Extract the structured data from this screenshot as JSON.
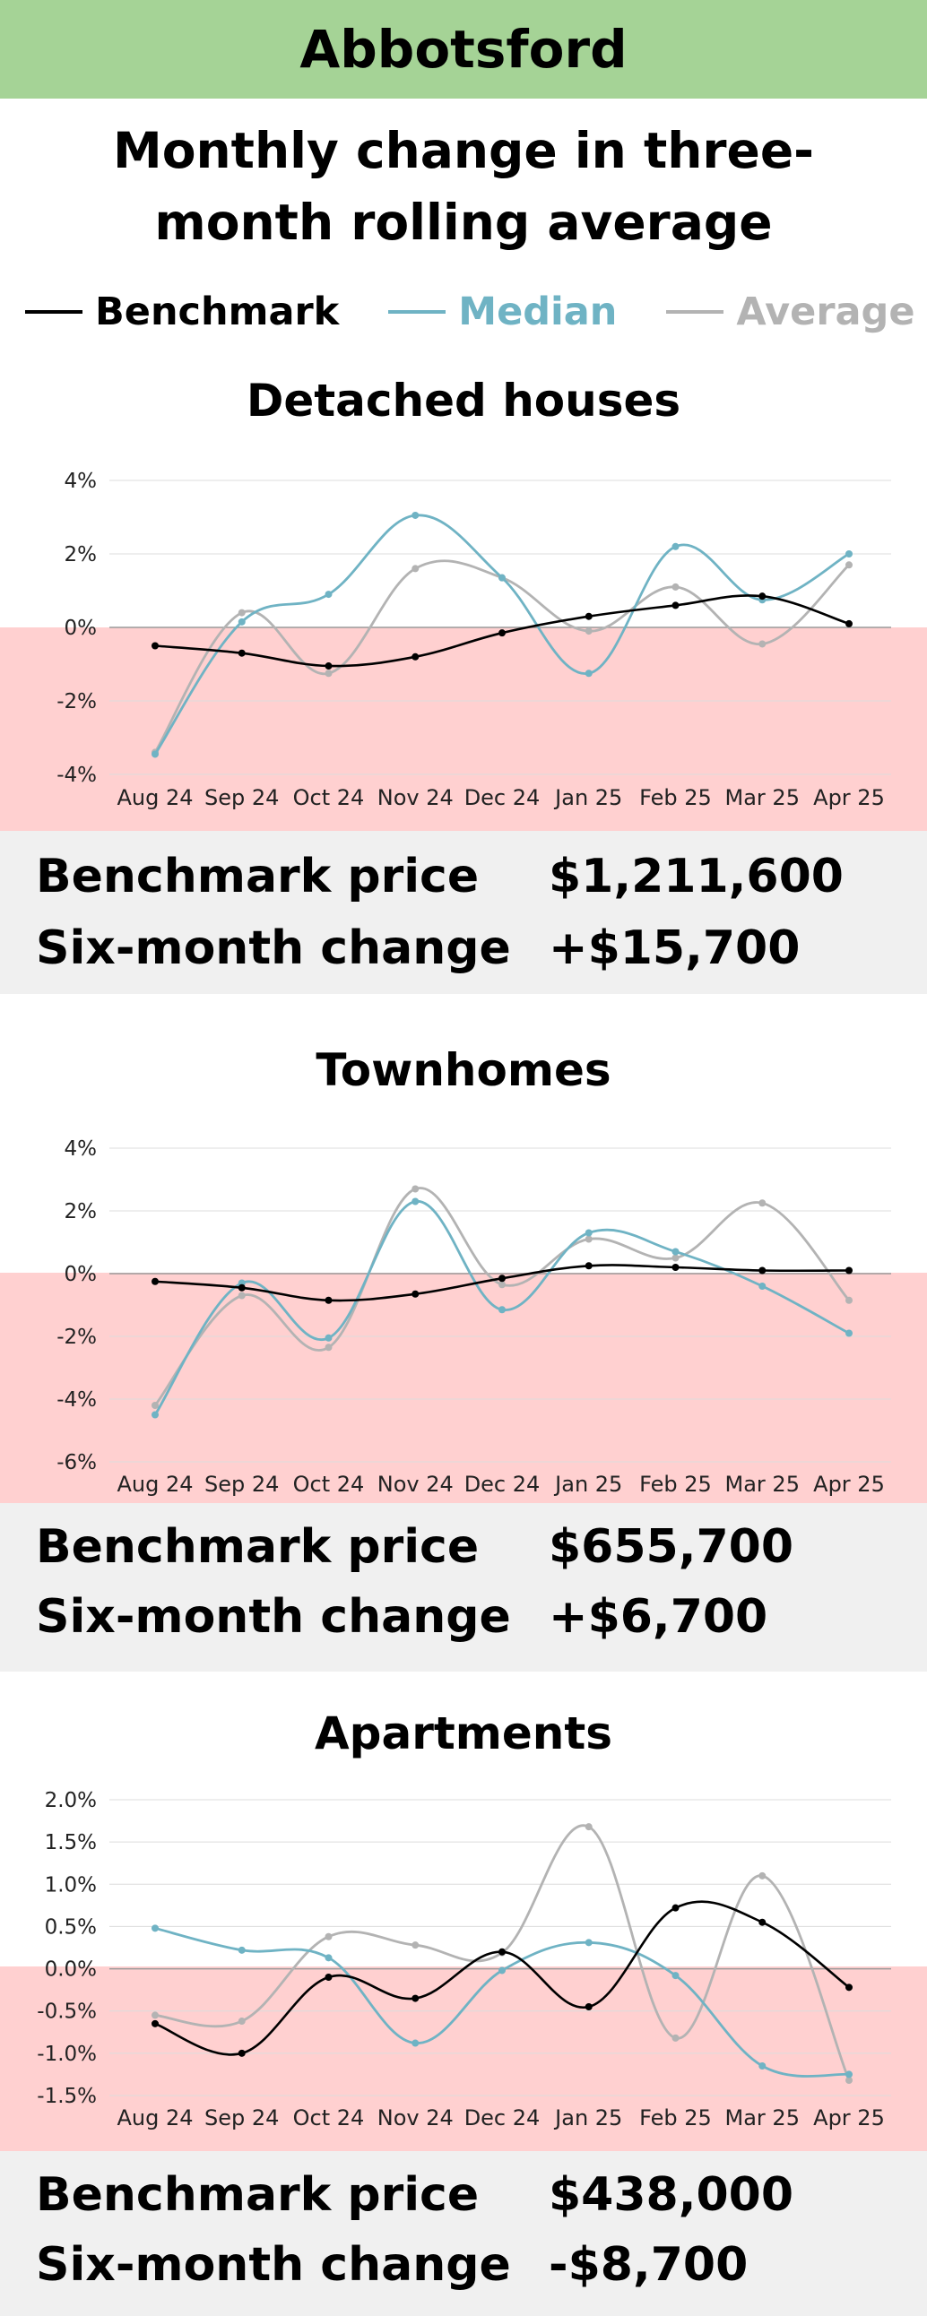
{
  "region": "Abbotsford",
  "header": {
    "title": "Monthly change in three-month rolling average"
  },
  "legend": [
    {
      "label": "Benchmark",
      "color": "#000000"
    },
    {
      "label": "Median",
      "color": "#6fb3c4"
    },
    {
      "label": "Average",
      "color": "#b3b3b3"
    }
  ],
  "colors": {
    "header_bg": "#a5d396",
    "negative_band": "#ffd0d0",
    "grid": "#dcdcdc",
    "stats_bg": "#f0f0f0"
  },
  "sections": [
    {
      "title": "Detached houses",
      "stats": {
        "price_label": "Benchmark price",
        "price_value": "$1,211,600",
        "change_label": "Six-month change",
        "change_value": "+$15,700"
      }
    },
    {
      "title": "Townhomes",
      "stats": {
        "price_label": "Benchmark price",
        "price_value": "$655,700",
        "change_label": "Six-month change",
        "change_value": "+$6,700"
      }
    },
    {
      "title": "Apartments",
      "stats": {
        "price_label": "Benchmark price",
        "price_value": "$438,000",
        "change_label": "Six-month change",
        "change_value": "-$8,700"
      }
    }
  ],
  "chart_data": [
    {
      "type": "line",
      "title": "Detached houses",
      "categories": [
        "Aug 24",
        "Sep 24",
        "Oct 24",
        "Nov 24",
        "Dec 24",
        "Jan 25",
        "Feb 25",
        "Mar 25",
        "Apr 25"
      ],
      "ylim": [
        -4,
        4
      ],
      "yticks": [
        4,
        2,
        0,
        -2,
        -4
      ],
      "ytick_labels": [
        "4%",
        "2%",
        "0%",
        "-2%",
        "-4%"
      ],
      "series": [
        {
          "name": "Benchmark",
          "values": [
            -0.5,
            -0.7,
            -1.05,
            -0.8,
            -0.15,
            0.3,
            0.6,
            0.85,
            0.1
          ]
        },
        {
          "name": "Median",
          "values": [
            -3.45,
            0.15,
            0.9,
            3.05,
            1.35,
            -1.25,
            2.2,
            0.75,
            2.0
          ]
        },
        {
          "name": "Average",
          "values": [
            -3.4,
            0.4,
            -1.25,
            1.6,
            1.35,
            -0.1,
            1.1,
            -0.45,
            1.7
          ]
        }
      ]
    },
    {
      "type": "line",
      "title": "Townhomes",
      "categories": [
        "Aug 24",
        "Sep 24",
        "Oct 24",
        "Nov 24",
        "Dec 24",
        "Jan 25",
        "Feb 25",
        "Mar 25",
        "Apr 25"
      ],
      "ylim": [
        -6,
        4
      ],
      "yticks": [
        4,
        2,
        0,
        -2,
        -4,
        -6
      ],
      "ytick_labels": [
        "4%",
        "2%",
        "0%",
        "-2%",
        "-4%",
        "-6%"
      ],
      "series": [
        {
          "name": "Benchmark",
          "values": [
            -0.25,
            -0.45,
            -0.85,
            -0.65,
            -0.15,
            0.25,
            0.2,
            0.1,
            0.1
          ]
        },
        {
          "name": "Median",
          "values": [
            -4.5,
            -0.3,
            -2.05,
            2.3,
            -1.15,
            1.3,
            0.7,
            -0.4,
            -1.9
          ]
        },
        {
          "name": "Average",
          "values": [
            -4.2,
            -0.7,
            -2.35,
            2.7,
            -0.35,
            1.1,
            0.5,
            2.25,
            -0.85
          ]
        }
      ]
    },
    {
      "type": "line",
      "title": "Apartments",
      "categories": [
        "Aug 24",
        "Sep 24",
        "Oct 24",
        "Nov 24",
        "Dec 24",
        "Jan 25",
        "Feb 25",
        "Mar 25",
        "Apr 25"
      ],
      "ylim": [
        -1.5,
        2.0
      ],
      "yticks": [
        2.0,
        1.5,
        1.0,
        0.5,
        0.0,
        -0.5,
        -1.0,
        -1.5
      ],
      "ytick_labels": [
        "2.0%",
        "1.5%",
        "1.0%",
        "0.5%",
        "0.0%",
        "-0.5%",
        "-1.0%",
        "-1.5%"
      ],
      "series": [
        {
          "name": "Benchmark",
          "values": [
            -0.65,
            -1.0,
            -0.1,
            -0.35,
            0.2,
            -0.45,
            0.72,
            0.55,
            -0.22
          ]
        },
        {
          "name": "Median",
          "values": [
            0.48,
            0.22,
            0.13,
            -0.88,
            -0.02,
            0.31,
            -0.08,
            -1.15,
            -1.25
          ]
        },
        {
          "name": "Average",
          "values": [
            -0.55,
            -0.62,
            0.38,
            0.28,
            0.19,
            1.68,
            -0.82,
            1.1,
            -1.32
          ]
        }
      ]
    }
  ]
}
